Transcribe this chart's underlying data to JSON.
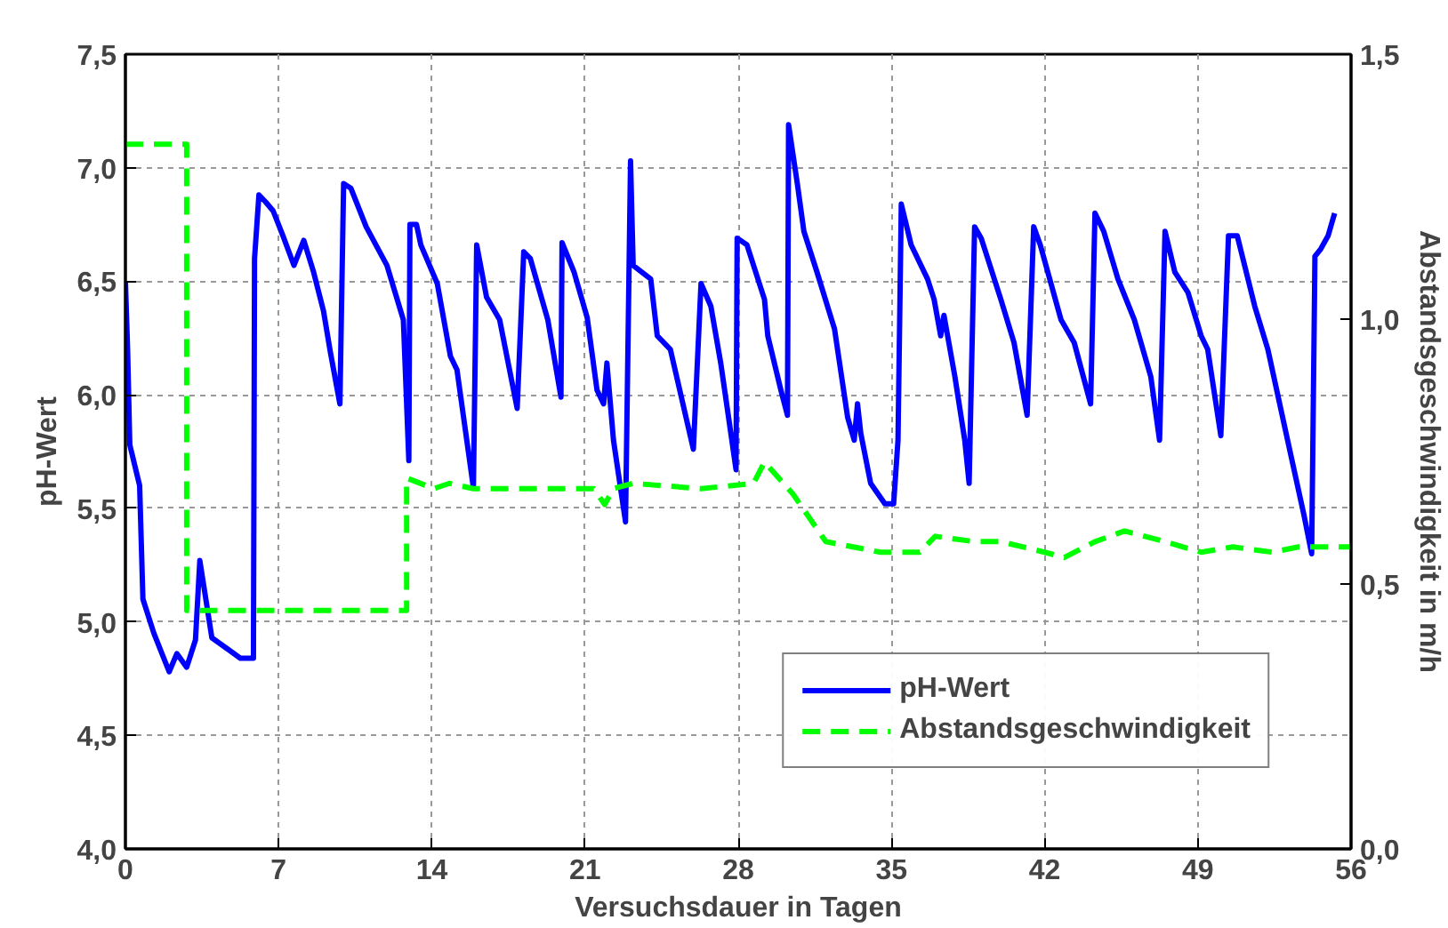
{
  "chart_data": {
    "type": "line",
    "xlabel": "Versuchsdauer in Tagen",
    "ylabel": "pH-Wert",
    "y2label": "Abstandsgeschwindigkeit in m/h",
    "xlim": [
      0,
      56
    ],
    "xticks": [
      0,
      7,
      14,
      21,
      28,
      35,
      42,
      49,
      56
    ],
    "ylim": [
      4.0,
      7.5
    ],
    "yticks": [
      {
        "value": 4.0,
        "label": "4,0"
      },
      {
        "value": 4.5,
        "label": "4,5"
      },
      {
        "value": 5.0,
        "label": "5,0"
      },
      {
        "value": 5.5,
        "label": "5,5"
      },
      {
        "value": 6.0,
        "label": "6,0"
      },
      {
        "value": 6.5,
        "label": "6,5"
      },
      {
        "value": 7.0,
        "label": "7,0"
      },
      {
        "value": 7.5,
        "label": "7,5"
      }
    ],
    "y2lim": [
      0.0,
      1.5
    ],
    "y2ticks": [
      {
        "value": 0.0,
        "label": "0,0"
      },
      {
        "value": 0.5,
        "label": "0,5"
      },
      {
        "value": 1.0,
        "label": "1,0"
      },
      {
        "value": 1.5,
        "label": "1,5"
      }
    ],
    "grid": true,
    "legend": "bottom right",
    "series": [
      {
        "name": "pH-Wert",
        "color": "#0000ff",
        "line_style": "solid",
        "x": [
          0,
          0.1,
          0.2,
          0.65,
          0.8,
          1.3,
          2.0,
          2.35,
          2.8,
          3.2,
          3.4,
          3.95,
          5.25,
          5.85,
          5.9,
          6.1,
          6.4,
          6.75,
          7.2,
          7.7,
          8.15,
          8.6,
          9.05,
          9.36,
          9.8,
          9.97,
          10.3,
          11.0,
          11.95,
          12.7,
          12.95,
          13.0,
          13.3,
          13.5,
          14.25,
          14.85,
          15.15,
          15.9,
          16.05,
          16.5,
          17.1,
          17.9,
          18.2,
          18.5,
          19.3,
          19.9,
          19.95,
          20.5,
          21.1,
          21.55,
          21.85,
          22.0,
          22.3,
          22.85,
          23.08,
          23.2,
          24.0,
          24.3,
          24.9,
          25.95,
          26.3,
          26.75,
          27.2,
          27.5,
          27.9,
          27.95,
          28.4,
          29.2,
          29.35,
          29.95,
          30.25,
          30.3,
          30.7,
          31.0,
          31.6,
          32.4,
          33.0,
          33.3,
          33.45,
          33.6,
          34.05,
          34.7,
          35.1,
          35.3,
          35.45,
          35.9,
          36.65,
          36.95,
          37.25,
          37.4,
          37.9,
          38.35,
          38.55,
          38.8,
          39.1,
          40.0,
          40.6,
          41.2,
          41.5,
          41.8,
          42.75,
          43.35,
          44.1,
          44.3,
          44.7,
          45.35,
          46.1,
          46.85,
          47.25,
          47.5,
          47.95,
          48.55,
          49.15,
          49.45,
          50.05,
          50.4,
          50.8,
          51.6,
          52.2,
          53.1,
          53.85,
          54.2,
          54.35,
          54.6,
          54.95,
          55.25
        ],
        "values": [
          6.5,
          6.2,
          5.78,
          5.6,
          5.1,
          4.95,
          4.78,
          4.86,
          4.8,
          4.92,
          5.27,
          4.93,
          4.84,
          4.84,
          6.6,
          6.88,
          6.85,
          6.81,
          6.7,
          6.57,
          6.68,
          6.54,
          6.37,
          6.19,
          5.96,
          6.93,
          6.91,
          6.74,
          6.57,
          6.33,
          5.71,
          6.75,
          6.75,
          6.66,
          6.49,
          6.17,
          6.11,
          5.59,
          6.66,
          6.43,
          6.33,
          5.94,
          6.63,
          6.6,
          6.33,
          5.99,
          6.67,
          6.54,
          6.34,
          6.02,
          5.96,
          6.14,
          5.8,
          5.44,
          7.03,
          6.57,
          6.51,
          6.26,
          6.2,
          5.76,
          6.49,
          6.39,
          6.14,
          5.94,
          5.67,
          6.69,
          6.66,
          6.42,
          6.26,
          6.02,
          5.91,
          7.19,
          6.93,
          6.72,
          6.54,
          6.29,
          5.9,
          5.8,
          5.96,
          5.83,
          5.61,
          5.52,
          5.52,
          5.8,
          6.84,
          6.66,
          6.51,
          6.42,
          6.26,
          6.35,
          6.08,
          5.8,
          5.61,
          6.74,
          6.69,
          6.42,
          6.23,
          5.91,
          6.74,
          6.66,
          6.33,
          6.23,
          5.96,
          6.8,
          6.72,
          6.51,
          6.33,
          6.08,
          5.8,
          6.72,
          6.54,
          6.45,
          6.26,
          6.2,
          5.82,
          6.7,
          6.7,
          6.39,
          6.2,
          5.8,
          5.47,
          5.3,
          6.61,
          6.64,
          6.7,
          6.8
        ]
      },
      {
        "name": "Abstandsgeschwindigkeit",
        "color": "#00ff00",
        "line_style": "dashed",
        "axis": "y2",
        "x": [
          0,
          2.8,
          2.8,
          12.85,
          12.85,
          14.1,
          14.8,
          15.9,
          18.5,
          21.4,
          21.9,
          22.3,
          23.2,
          26.3,
          28.7,
          29.2,
          30.5,
          32.0,
          34.5,
          36.3,
          37.0,
          38.8,
          40.0,
          42.0,
          42.9,
          44.3,
          45.65,
          47.5,
          49.15,
          50.6,
          52.4,
          53.6,
          56.0
        ],
        "values": [
          1.33,
          1.33,
          0.45,
          0.45,
          0.7,
          0.68,
          0.69,
          0.68,
          0.68,
          0.68,
          0.65,
          0.68,
          0.69,
          0.68,
          0.69,
          0.73,
          0.67,
          0.58,
          0.56,
          0.56,
          0.59,
          0.58,
          0.58,
          0.56,
          0.55,
          0.58,
          0.6,
          0.58,
          0.56,
          0.57,
          0.56,
          0.57,
          0.57
        ]
      }
    ]
  }
}
